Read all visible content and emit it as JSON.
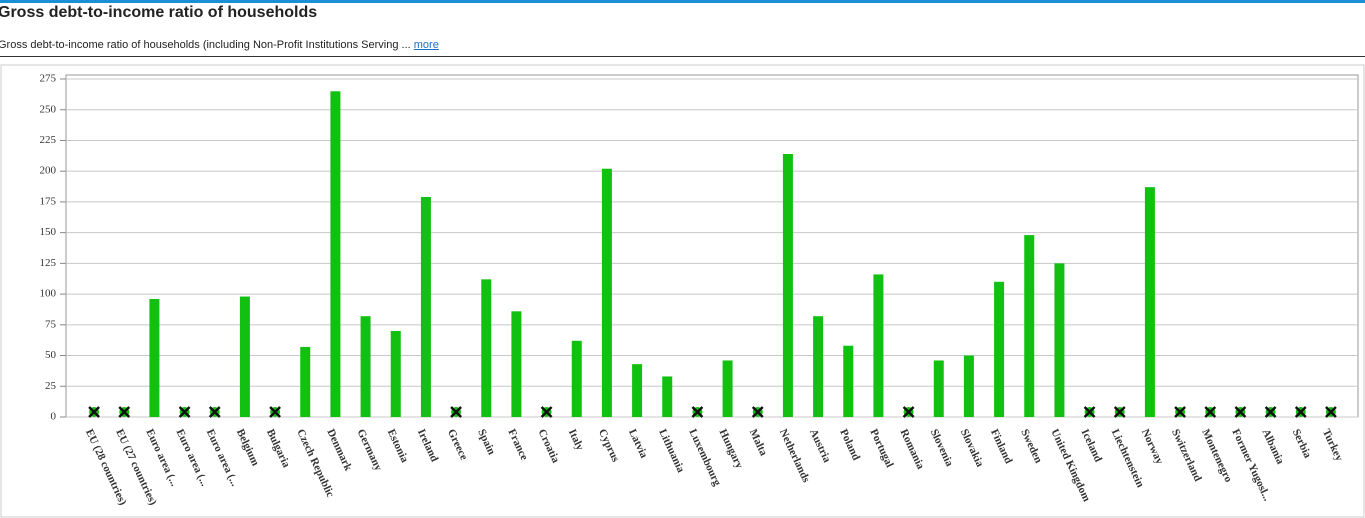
{
  "header": {
    "title": "Gross debt-to-income ratio of households",
    "subtitle": "Gross debt-to-income ratio of households (including Non-Profit Institutions Serving ...",
    "more": "more"
  },
  "chart_data": {
    "type": "bar",
    "categories": [
      "EU (28 countries)",
      "EU (27 countries)",
      "Euro area (...",
      "Euro area (...",
      "Euro area (...",
      "Belgium",
      "Bulgaria",
      "Czech Republic",
      "Denmark",
      "Germany",
      "Estonia",
      "Ireland",
      "Greece",
      "Spain",
      "France",
      "Croatia",
      "Italy",
      "Cyprus",
      "Latvia",
      "Lithuania",
      "Luxembourg",
      "Hungary",
      "Malta",
      "Netherlands",
      "Austria",
      "Poland",
      "Portugal",
      "Romania",
      "Slovenia",
      "Slovakia",
      "Finland",
      "Sweden",
      "United Kingdom",
      "Iceland",
      "Liechtenstein",
      "Norway",
      "Switzerland",
      "Montenegro",
      "Former Yugosl...",
      "Albania",
      "Serbia",
      "Turkey"
    ],
    "values": [
      null,
      null,
      96,
      null,
      null,
      98,
      null,
      57,
      265,
      82,
      70,
      179,
      null,
      112,
      86,
      null,
      62,
      202,
      43,
      33,
      null,
      46,
      null,
      214,
      82,
      58,
      116,
      null,
      46,
      50,
      110,
      148,
      125,
      null,
      null,
      187,
      null,
      null,
      null,
      null,
      null,
      null
    ],
    "color": "#11c011",
    "ylim": [
      0,
      275
    ],
    "yticks": [
      0,
      25,
      50,
      75,
      100,
      125,
      150,
      175,
      200,
      225,
      250,
      275
    ],
    "grid": true
  }
}
